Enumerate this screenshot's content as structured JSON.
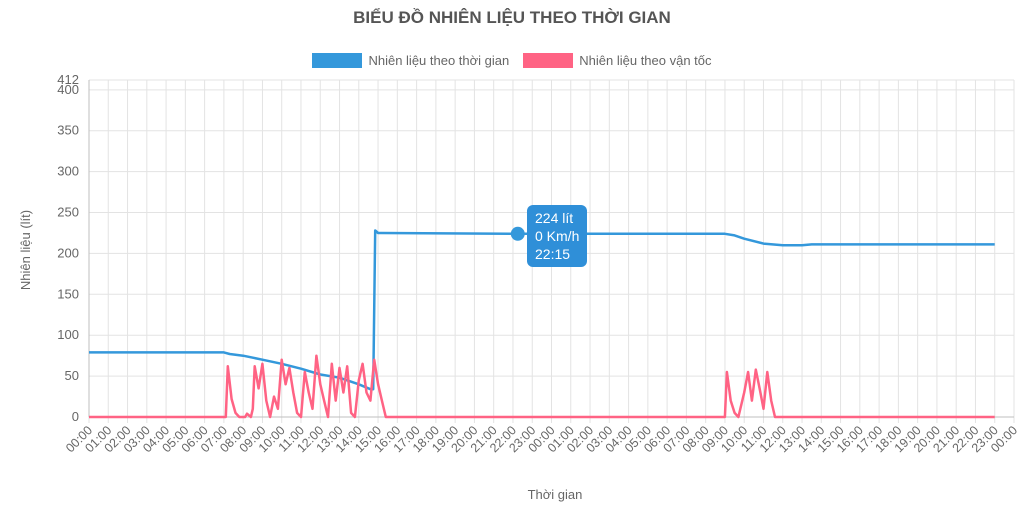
{
  "chart_data": {
    "type": "line",
    "title": "BIỂU ĐỒ NHIÊN LIỆU THEO THỜI GIAN",
    "xlabel": "Thời gian",
    "ylabel": "Nhiên liệu (lít)",
    "ylim": [
      0,
      412
    ],
    "y_ticks": [
      "0",
      "50",
      "100",
      "150",
      "200",
      "250",
      "300",
      "350",
      "400",
      "412"
    ],
    "x_ticks": [
      "00:00",
      "01:00",
      "02:00",
      "03:00",
      "04:00",
      "05:00",
      "06:00",
      "07:00",
      "08:00",
      "09:00",
      "10:00",
      "11:00",
      "12:00",
      "13:00",
      "14:00",
      "15:00",
      "16:00",
      "17:00",
      "18:00",
      "19:00",
      "20:00",
      "21:00",
      "22:00",
      "23:00",
      "00:00",
      "01:00",
      "02:00",
      "03:00",
      "04:00",
      "05:00",
      "06:00",
      "07:00",
      "08:00",
      "09:00",
      "10:00",
      "11:00",
      "12:00",
      "13:00",
      "14:00",
      "15:00",
      "16:00",
      "17:00",
      "18:00",
      "19:00",
      "20:00",
      "21:00",
      "22:00",
      "23:00",
      "00:00"
    ],
    "grid": true,
    "legend_position": "top",
    "series": [
      {
        "name": "Nhiên liệu theo thời gian",
        "color": "#3498db",
        "points": [
          [
            0,
            79
          ],
          [
            7,
            79
          ],
          [
            7.3,
            77
          ],
          [
            8,
            75
          ],
          [
            9,
            70
          ],
          [
            10,
            65
          ],
          [
            11,
            59
          ],
          [
            12,
            52
          ],
          [
            13,
            48
          ],
          [
            14,
            40
          ],
          [
            14.6,
            34
          ],
          [
            14.75,
            34
          ],
          [
            14.85,
            228
          ],
          [
            15,
            225
          ],
          [
            22.25,
            224
          ],
          [
            33,
            224
          ],
          [
            33.5,
            222
          ],
          [
            34,
            218
          ],
          [
            35,
            212
          ],
          [
            36,
            210
          ],
          [
            37,
            210
          ],
          [
            37.5,
            211
          ],
          [
            47,
            211
          ]
        ]
      },
      {
        "name": "Nhiên liệu theo vận tốc",
        "color": "#ff6384",
        "points": [
          [
            0,
            0
          ],
          [
            7.1,
            0
          ],
          [
            7.2,
            62
          ],
          [
            7.4,
            22
          ],
          [
            7.6,
            5
          ],
          [
            7.8,
            0
          ],
          [
            8.1,
            0
          ],
          [
            8.2,
            4
          ],
          [
            8.4,
            0
          ],
          [
            8.5,
            10
          ],
          [
            8.6,
            62
          ],
          [
            8.8,
            35
          ],
          [
            9,
            65
          ],
          [
            9.2,
            20
          ],
          [
            9.4,
            0
          ],
          [
            9.6,
            25
          ],
          [
            9.8,
            10
          ],
          [
            10,
            70
          ],
          [
            10.2,
            40
          ],
          [
            10.4,
            60
          ],
          [
            10.6,
            30
          ],
          [
            10.8,
            5
          ],
          [
            11,
            0
          ],
          [
            11.2,
            55
          ],
          [
            11.4,
            30
          ],
          [
            11.6,
            10
          ],
          [
            11.8,
            75
          ],
          [
            12,
            40
          ],
          [
            12.2,
            20
          ],
          [
            12.4,
            0
          ],
          [
            12.6,
            65
          ],
          [
            12.8,
            20
          ],
          [
            13,
            60
          ],
          [
            13.2,
            30
          ],
          [
            13.4,
            62
          ],
          [
            13.6,
            5
          ],
          [
            13.8,
            0
          ],
          [
            14,
            45
          ],
          [
            14.2,
            65
          ],
          [
            14.4,
            30
          ],
          [
            14.6,
            20
          ],
          [
            14.8,
            70
          ],
          [
            15,
            40
          ],
          [
            15.2,
            20
          ],
          [
            15.4,
            0
          ],
          [
            33,
            0
          ],
          [
            33.1,
            55
          ],
          [
            33.3,
            20
          ],
          [
            33.5,
            5
          ],
          [
            33.7,
            0
          ],
          [
            34,
            30
          ],
          [
            34.2,
            55
          ],
          [
            34.4,
            20
          ],
          [
            34.6,
            58
          ],
          [
            34.8,
            35
          ],
          [
            35,
            10
          ],
          [
            35.2,
            55
          ],
          [
            35.4,
            20
          ],
          [
            35.6,
            0
          ],
          [
            47,
            0
          ]
        ]
      }
    ]
  },
  "tooltip": {
    "line1": "224 lít",
    "line2": "0 Km/h",
    "line3": "22:15",
    "x_hours": 22.25,
    "y_value": 224
  }
}
